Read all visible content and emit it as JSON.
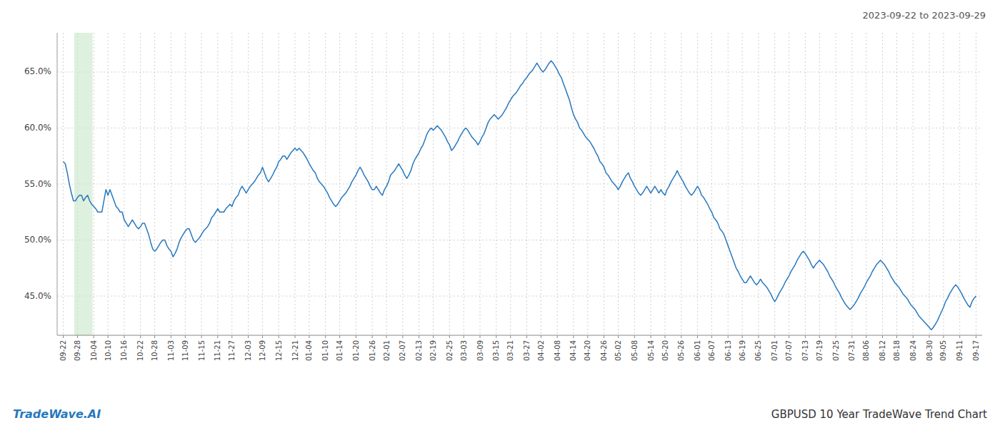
{
  "chart_data": {
    "type": "line",
    "title": "2023-09-22 to 2023-09-29",
    "annotations": [
      "TradeWave.AI",
      "GBPUSD 10 Year TradeWave Trend Chart"
    ],
    "color": "#2878bd",
    "grid": true,
    "highlight": [
      5.4,
      14.4
    ],
    "highlight_color": "#c8e6c8",
    "ylim": [
      0.415,
      0.685
    ],
    "yticks": [
      {
        "value": 0.45,
        "label": "45.0%"
      },
      {
        "value": 0.5,
        "label": "50.0%"
      },
      {
        "value": 0.55,
        "label": "55.0%"
      },
      {
        "value": 0.6,
        "label": "60.0%"
      },
      {
        "value": 0.65,
        "label": "65.0%"
      }
    ],
    "xlim": [
      -3,
      452
    ],
    "xticks": [
      {
        "value": 0,
        "label": "09-22"
      },
      {
        "value": 7,
        "label": "09-28"
      },
      {
        "value": 15,
        "label": "10-04"
      },
      {
        "value": 22,
        "label": "10-10"
      },
      {
        "value": 30,
        "label": "10-16"
      },
      {
        "value": 38,
        "label": "10-22"
      },
      {
        "value": 45,
        "label": "10-28"
      },
      {
        "value": 53,
        "label": "11-03"
      },
      {
        "value": 60,
        "label": "11-09"
      },
      {
        "value": 68,
        "label": "11-15"
      },
      {
        "value": 76,
        "label": "11-21"
      },
      {
        "value": 83,
        "label": "11-27"
      },
      {
        "value": 91,
        "label": "12-03"
      },
      {
        "value": 98,
        "label": "12-09"
      },
      {
        "value": 106,
        "label": "12-15"
      },
      {
        "value": 114,
        "label": "12-21"
      },
      {
        "value": 121,
        "label": "01-04"
      },
      {
        "value": 129,
        "label": "01-10"
      },
      {
        "value": 136,
        "label": "01-14"
      },
      {
        "value": 144,
        "label": "01-20"
      },
      {
        "value": 152,
        "label": "01-26"
      },
      {
        "value": 159,
        "label": "02-01"
      },
      {
        "value": 167,
        "label": "02-07"
      },
      {
        "value": 175,
        "label": "02-13"
      },
      {
        "value": 182,
        "label": "02-19"
      },
      {
        "value": 190,
        "label": "02-25"
      },
      {
        "value": 197,
        "label": "03-03"
      },
      {
        "value": 205,
        "label": "03-09"
      },
      {
        "value": 213,
        "label": "03-15"
      },
      {
        "value": 220,
        "label": "03-21"
      },
      {
        "value": 228,
        "label": "03-27"
      },
      {
        "value": 235,
        "label": "04-02"
      },
      {
        "value": 243,
        "label": "04-08"
      },
      {
        "value": 251,
        "label": "04-14"
      },
      {
        "value": 258,
        "label": "04-20"
      },
      {
        "value": 266,
        "label": "04-26"
      },
      {
        "value": 273,
        "label": "05-02"
      },
      {
        "value": 281,
        "label": "05-08"
      },
      {
        "value": 289,
        "label": "05-14"
      },
      {
        "value": 296,
        "label": "05-20"
      },
      {
        "value": 304,
        "label": "05-26"
      },
      {
        "value": 312,
        "label": "06-01"
      },
      {
        "value": 319,
        "label": "06-07"
      },
      {
        "value": 327,
        "label": "06-13"
      },
      {
        "value": 334,
        "label": "06-19"
      },
      {
        "value": 342,
        "label": "06-25"
      },
      {
        "value": 350,
        "label": "07-01"
      },
      {
        "value": 357,
        "label": "07-07"
      },
      {
        "value": 365,
        "label": "07-13"
      },
      {
        "value": 372,
        "label": "07-19"
      },
      {
        "value": 380,
        "label": "07-25"
      },
      {
        "value": 388,
        "label": "07-31"
      },
      {
        "value": 395,
        "label": "08-06"
      },
      {
        "value": 403,
        "label": "08-12"
      },
      {
        "value": 410,
        "label": "08-18"
      },
      {
        "value": 418,
        "label": "08-24"
      },
      {
        "value": 426,
        "label": "08-30"
      },
      {
        "value": 433,
        "label": "09-05"
      },
      {
        "value": 441,
        "label": "09-11"
      },
      {
        "value": 449,
        "label": "09-17"
      }
    ],
    "values": [
      0.57,
      0.568,
      0.56,
      0.55,
      0.542,
      0.535,
      0.535,
      0.538,
      0.54,
      0.54,
      0.535,
      0.538,
      0.54,
      0.535,
      0.532,
      0.53,
      0.528,
      0.525,
      0.525,
      0.525,
      0.535,
      0.545,
      0.54,
      0.545,
      0.54,
      0.535,
      0.53,
      0.528,
      0.525,
      0.525,
      0.518,
      0.515,
      0.512,
      0.515,
      0.518,
      0.515,
      0.512,
      0.51,
      0.512,
      0.515,
      0.515,
      0.51,
      0.505,
      0.498,
      0.492,
      0.49,
      0.492,
      0.495,
      0.498,
      0.5,
      0.5,
      0.495,
      0.492,
      0.49,
      0.485,
      0.488,
      0.492,
      0.498,
      0.502,
      0.505,
      0.508,
      0.51,
      0.51,
      0.505,
      0.5,
      0.498,
      0.5,
      0.502,
      0.505,
      0.508,
      0.51,
      0.512,
      0.515,
      0.52,
      0.522,
      0.525,
      0.528,
      0.525,
      0.525,
      0.525,
      0.528,
      0.53,
      0.532,
      0.53,
      0.535,
      0.538,
      0.54,
      0.545,
      0.548,
      0.545,
      0.542,
      0.545,
      0.548,
      0.55,
      0.552,
      0.555,
      0.558,
      0.56,
      0.565,
      0.56,
      0.555,
      0.552,
      0.555,
      0.558,
      0.562,
      0.565,
      0.57,
      0.572,
      0.575,
      0.575,
      0.572,
      0.575,
      0.578,
      0.58,
      0.582,
      0.58,
      0.582,
      0.58,
      0.578,
      0.575,
      0.572,
      0.568,
      0.565,
      0.562,
      0.56,
      0.555,
      0.552,
      0.55,
      0.548,
      0.545,
      0.542,
      0.538,
      0.535,
      0.532,
      0.53,
      0.532,
      0.535,
      0.538,
      0.54,
      0.542,
      0.545,
      0.548,
      0.552,
      0.555,
      0.558,
      0.562,
      0.565,
      0.562,
      0.558,
      0.555,
      0.552,
      0.548,
      0.545,
      0.545,
      0.548,
      0.545,
      0.542,
      0.54,
      0.545,
      0.548,
      0.552,
      0.558,
      0.56,
      0.562,
      0.565,
      0.568,
      0.565,
      0.562,
      0.558,
      0.555,
      0.558,
      0.562,
      0.568,
      0.572,
      0.575,
      0.578,
      0.582,
      0.585,
      0.59,
      0.595,
      0.598,
      0.6,
      0.598,
      0.6,
      0.602,
      0.6,
      0.598,
      0.595,
      0.592,
      0.588,
      0.585,
      0.58,
      0.582,
      0.585,
      0.588,
      0.592,
      0.595,
      0.598,
      0.6,
      0.598,
      0.595,
      0.592,
      0.59,
      0.588,
      0.585,
      0.588,
      0.592,
      0.595,
      0.6,
      0.605,
      0.608,
      0.61,
      0.612,
      0.61,
      0.608,
      0.61,
      0.612,
      0.615,
      0.618,
      0.622,
      0.625,
      0.628,
      0.63,
      0.632,
      0.635,
      0.638,
      0.64,
      0.643,
      0.645,
      0.648,
      0.65,
      0.652,
      0.655,
      0.658,
      0.655,
      0.652,
      0.65,
      0.652,
      0.655,
      0.658,
      0.66,
      0.658,
      0.655,
      0.652,
      0.648,
      0.645,
      0.64,
      0.635,
      0.63,
      0.625,
      0.618,
      0.612,
      0.608,
      0.605,
      0.6,
      0.598,
      0.595,
      0.592,
      0.59,
      0.588,
      0.585,
      0.582,
      0.578,
      0.575,
      0.57,
      0.568,
      0.565,
      0.56,
      0.558,
      0.555,
      0.552,
      0.55,
      0.548,
      0.545,
      0.548,
      0.552,
      0.555,
      0.558,
      0.56,
      0.555,
      0.552,
      0.548,
      0.545,
      0.542,
      0.54,
      0.542,
      0.545,
      0.548,
      0.545,
      0.542,
      0.545,
      0.548,
      0.545,
      0.542,
      0.545,
      0.542,
      0.54,
      0.545,
      0.548,
      0.552,
      0.555,
      0.558,
      0.562,
      0.558,
      0.555,
      0.552,
      0.548,
      0.545,
      0.542,
      0.54,
      0.542,
      0.545,
      0.548,
      0.545,
      0.54,
      0.538,
      0.535,
      0.532,
      0.528,
      0.525,
      0.52,
      0.518,
      0.515,
      0.51,
      0.508,
      0.505,
      0.5,
      0.495,
      0.49,
      0.485,
      0.48,
      0.475,
      0.472,
      0.468,
      0.465,
      0.462,
      0.462,
      0.465,
      0.468,
      0.465,
      0.462,
      0.46,
      0.462,
      0.465,
      0.462,
      0.46,
      0.458,
      0.455,
      0.452,
      0.448,
      0.445,
      0.448,
      0.452,
      0.455,
      0.458,
      0.462,
      0.465,
      0.468,
      0.472,
      0.475,
      0.478,
      0.482,
      0.485,
      0.488,
      0.49,
      0.488,
      0.485,
      0.482,
      0.478,
      0.475,
      0.478,
      0.48,
      0.482,
      0.48,
      0.478,
      0.475,
      0.472,
      0.468,
      0.465,
      0.462,
      0.458,
      0.455,
      0.452,
      0.448,
      0.445,
      0.442,
      0.44,
      0.438,
      0.44,
      0.442,
      0.445,
      0.448,
      0.452,
      0.455,
      0.458,
      0.462,
      0.465,
      0.468,
      0.472,
      0.475,
      0.478,
      0.48,
      0.482,
      0.48,
      0.478,
      0.475,
      0.472,
      0.468,
      0.465,
      0.462,
      0.46,
      0.458,
      0.455,
      0.452,
      0.45,
      0.448,
      0.445,
      0.442,
      0.44,
      0.438,
      0.435,
      0.432,
      0.43,
      0.428,
      0.426,
      0.424,
      0.422,
      0.42,
      0.422,
      0.425,
      0.428,
      0.432,
      0.436,
      0.44,
      0.445,
      0.448,
      0.452,
      0.455,
      0.458,
      0.46,
      0.458,
      0.455,
      0.452,
      0.448,
      0.445,
      0.442,
      0.44,
      0.445,
      0.448,
      0.45
    ]
  }
}
